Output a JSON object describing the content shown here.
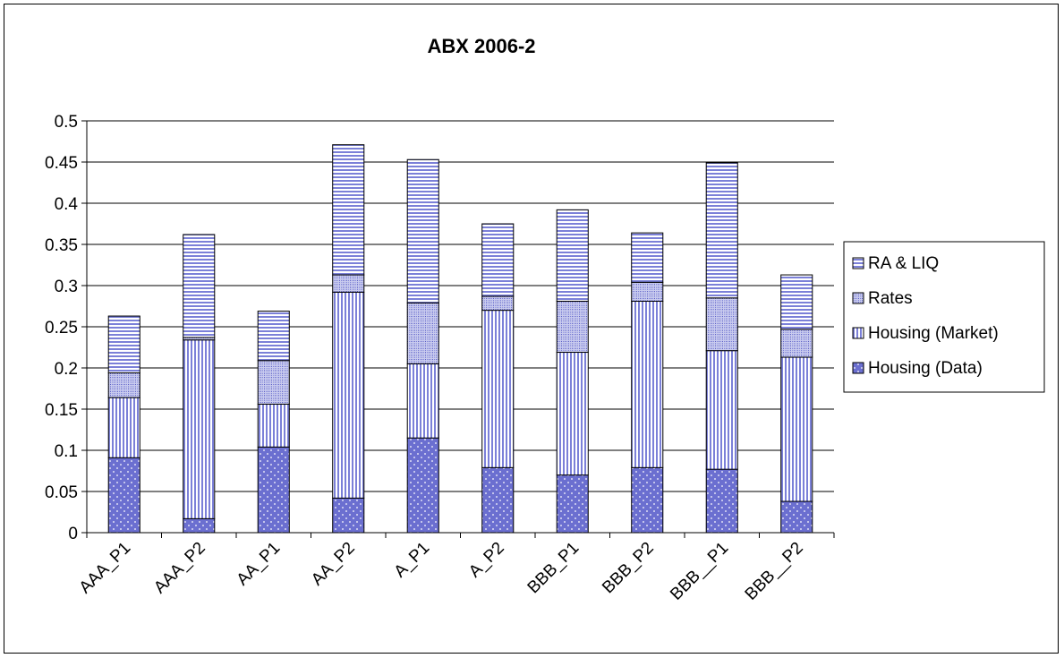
{
  "chart_data": {
    "type": "bar",
    "stacked": true,
    "title": "ABX 2006-2",
    "xlabel": "",
    "ylabel": "",
    "ylim": [
      0,
      0.5
    ],
    "yticks": [
      "0",
      "0.05",
      "0.1",
      "0.15",
      "0.2",
      "0.25",
      "0.3",
      "0.35",
      "0.4",
      "0.45",
      "0.5"
    ],
    "grid": true,
    "legend_position": "right",
    "categories": [
      "AAA_P1",
      "AAA_P2",
      "AA_P1",
      "AA_P2",
      "A_P1",
      "A_P2",
      "BBB_P1",
      "BBB_P2",
      "BBB__P1",
      "BBB__P2"
    ],
    "series": [
      {
        "name": "Housing (Data)",
        "color": "#6b6fd0",
        "pattern": "dots",
        "values": [
          0.091,
          0.017,
          0.104,
          0.042,
          0.115,
          0.079,
          0.07,
          0.079,
          0.077,
          0.038
        ]
      },
      {
        "name": "Housing (Market)",
        "color": "#7b80d8",
        "pattern": "vlines",
        "values": [
          0.073,
          0.217,
          0.052,
          0.25,
          0.09,
          0.191,
          0.149,
          0.202,
          0.144,
          0.175
        ]
      },
      {
        "name": "Rates",
        "color": "#9a9ee0",
        "pattern": "crosshatch",
        "values": [
          0.03,
          0.003,
          0.053,
          0.021,
          0.074,
          0.017,
          0.062,
          0.023,
          0.064,
          0.034
        ]
      },
      {
        "name": "RA & LIQ",
        "color": "#7b80d8",
        "pattern": "hlines",
        "values": [
          0.069,
          0.125,
          0.06,
          0.158,
          0.174,
          0.088,
          0.111,
          0.06,
          0.164,
          0.066
        ]
      }
    ]
  }
}
